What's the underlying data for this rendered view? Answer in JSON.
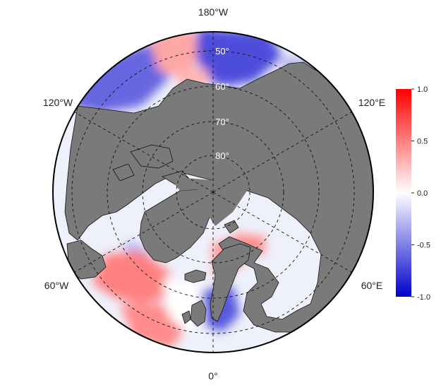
{
  "map": {
    "projection": "north-polar-stereographic",
    "land_color": "#7a7a7a",
    "outline_color": "#000000",
    "grid_style": "dashed",
    "longitude_labels": [
      {
        "text": "180°W"
      },
      {
        "text": "120°W"
      },
      {
        "text": "120°E"
      },
      {
        "text": "60°W"
      },
      {
        "text": "60°E"
      },
      {
        "text": "0°"
      }
    ],
    "latitude_labels": [
      {
        "text": "50°"
      },
      {
        "text": "60°"
      },
      {
        "text": "70°"
      },
      {
        "text": "80°"
      }
    ],
    "regions": [
      {
        "name": "north-pacific-west",
        "value": -0.6
      },
      {
        "name": "north-pacific-center",
        "value": 0.35
      },
      {
        "name": "north-pacific-east",
        "value": -0.7
      },
      {
        "name": "bering-strip",
        "value": 0.3
      },
      {
        "name": "okhotsk",
        "value": -0.3
      },
      {
        "name": "labrador-sea",
        "value": -0.3
      },
      {
        "name": "north-atlantic-west",
        "value": 0.5
      },
      {
        "name": "north-atlantic-south",
        "value": 0.45
      },
      {
        "name": "north-atlantic-center",
        "value": 0.0
      },
      {
        "name": "north-sea",
        "value": -0.65
      },
      {
        "name": "norwegian-sea",
        "value": 0.4
      },
      {
        "name": "barents-sea",
        "value": 0.45
      }
    ]
  },
  "colorbar": {
    "min": -1.0,
    "max": 1.0,
    "stops": [
      "#0000cc",
      "#ffffff",
      "#ff0000"
    ],
    "ticks": [
      "1.0",
      "0.5",
      "0.0",
      "-0.5",
      "-1.0"
    ]
  }
}
